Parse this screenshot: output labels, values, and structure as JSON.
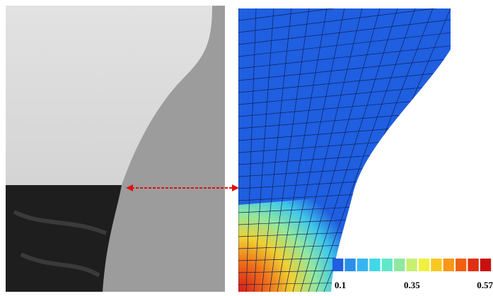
{
  "legend": {
    "labels": [
      "0.1",
      "0.35",
      "0.57"
    ],
    "colors": [
      "#1f5fe0",
      "#2a8fe8",
      "#35b5ef",
      "#40d8e8",
      "#60e8c8",
      "#90e8a0",
      "#c8f070",
      "#f0f040",
      "#f8c820",
      "#f89818",
      "#f06010",
      "#e03010",
      "#c81010"
    ]
  }
}
